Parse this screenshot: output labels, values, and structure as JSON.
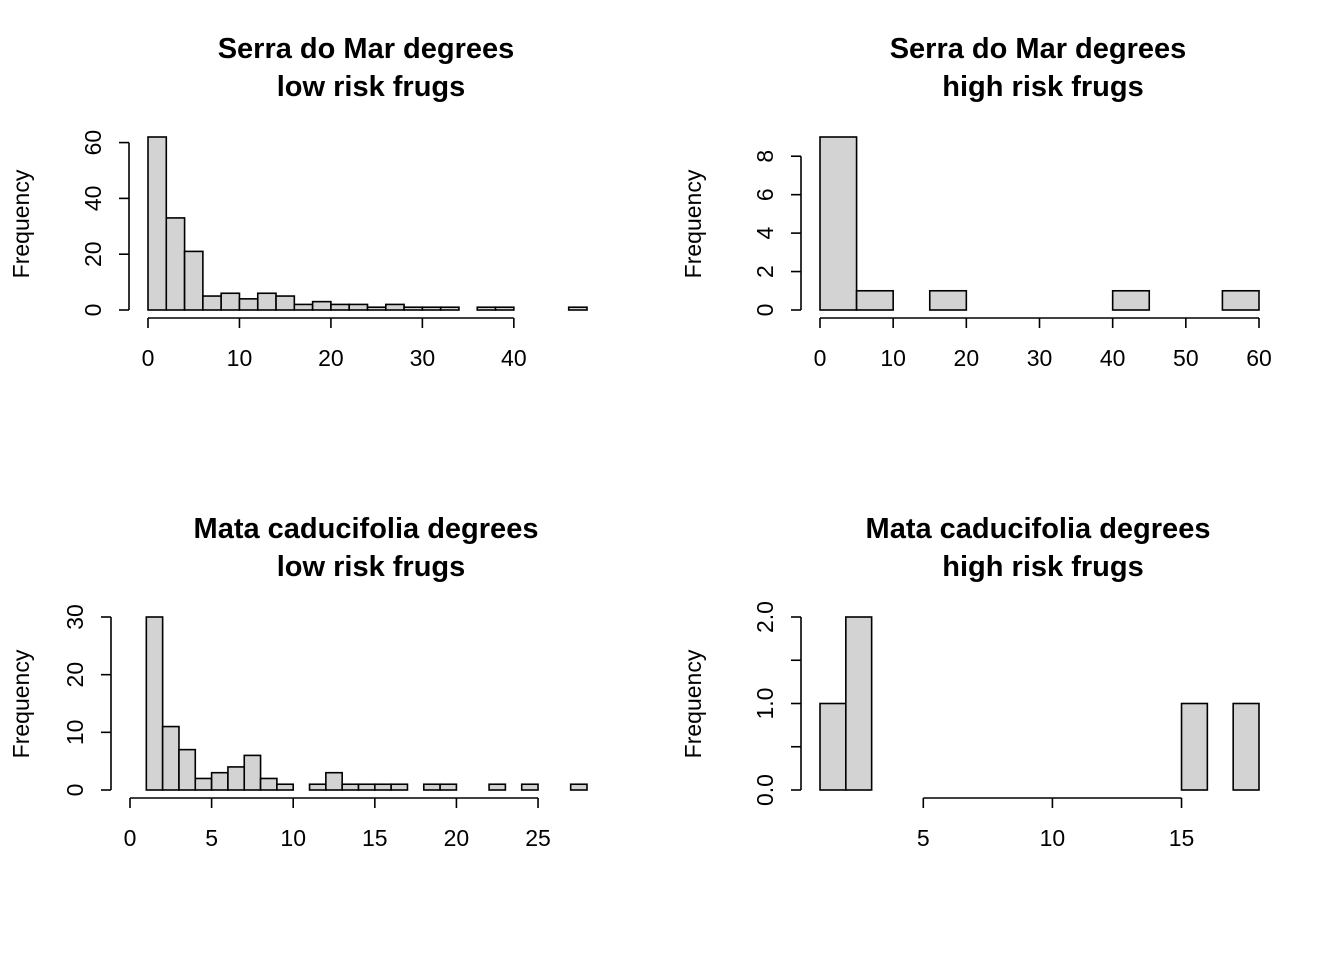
{
  "figure": {
    "background": "#ffffff",
    "bar_fill": "#d3d3d3",
    "bar_stroke": "#000000"
  },
  "chart_data": [
    {
      "type": "bar",
      "title": [
        "Serra do Mar degrees",
        "low risk frugs"
      ],
      "xlabel": "",
      "ylabel": "Frequency",
      "bin_edges": [
        0,
        2,
        4,
        6,
        8,
        10,
        12,
        14,
        16,
        18,
        20,
        22,
        24,
        26,
        28,
        30,
        32,
        34,
        36,
        38,
        40,
        42,
        44,
        46,
        48
      ],
      "values": [
        62,
        33,
        21,
        5,
        6,
        4,
        6,
        5,
        2,
        3,
        2,
        2,
        1,
        2,
        1,
        1,
        1,
        0,
        1,
        1,
        0,
        0,
        0,
        1
      ],
      "xticks": [
        0,
        10,
        20,
        30,
        40
      ],
      "xtick_labels": [
        "0",
        "10",
        "20",
        "30",
        "40"
      ],
      "xlim": [
        0,
        48
      ],
      "yticks": [
        0,
        20,
        40,
        60
      ],
      "ytick_labels": [
        "0",
        "20",
        "40",
        "60"
      ],
      "ylim": [
        0,
        62
      ]
    },
    {
      "type": "bar",
      "title": [
        "Serra do Mar degrees",
        "high risk frugs"
      ],
      "xlabel": "",
      "ylabel": "Frequency",
      "bin_edges": [
        0,
        5,
        10,
        15,
        20,
        25,
        30,
        35,
        40,
        45,
        50,
        55,
        60
      ],
      "values": [
        9,
        1,
        0,
        1,
        0,
        0,
        0,
        0,
        1,
        0,
        0,
        1
      ],
      "xticks": [
        0,
        10,
        20,
        30,
        40,
        50,
        60
      ],
      "xtick_labels": [
        "0",
        "10",
        "20",
        "30",
        "40",
        "50",
        "60"
      ],
      "xlim": [
        0,
        60
      ],
      "yticks": [
        0,
        2,
        4,
        6,
        8
      ],
      "ytick_labels": [
        "0",
        "2",
        "4",
        "6",
        "8"
      ],
      "ylim": [
        0,
        9
      ]
    },
    {
      "type": "bar",
      "title": [
        "Mata caducifolia degrees",
        "low risk frugs"
      ],
      "xlabel": "",
      "ylabel": "Frequency",
      "bin_edges": [
        1,
        2,
        3,
        4,
        5,
        6,
        7,
        8,
        9,
        10,
        11,
        12,
        13,
        14,
        15,
        16,
        17,
        18,
        19,
        20,
        21,
        22,
        23,
        24,
        25,
        26,
        27,
        28
      ],
      "values": [
        30,
        11,
        7,
        2,
        3,
        4,
        6,
        2,
        1,
        0,
        1,
        3,
        1,
        1,
        1,
        1,
        0,
        1,
        1,
        0,
        0,
        1,
        0,
        1,
        0,
        0,
        1
      ],
      "xticks": [
        0,
        5,
        10,
        15,
        20,
        25
      ],
      "xtick_labels": [
        "0",
        "5",
        "10",
        "15",
        "20",
        "25"
      ],
      "xlim": [
        0,
        28
      ],
      "yticks": [
        0,
        10,
        20,
        30
      ],
      "ytick_labels": [
        "0",
        "10",
        "20",
        "30"
      ],
      "ylim": [
        0,
        30
      ]
    },
    {
      "type": "bar",
      "title": [
        "Mata caducifolia degrees",
        "high risk frugs"
      ],
      "xlabel": "",
      "ylabel": "Frequency",
      "bin_edges": [
        1,
        2,
        3,
        4,
        5,
        6,
        7,
        8,
        9,
        10,
        11,
        12,
        13,
        14,
        15,
        16,
        17,
        18
      ],
      "values": [
        1,
        2,
        0,
        0,
        0,
        0,
        0,
        0,
        0,
        0,
        0,
        0,
        0,
        0,
        1,
        0,
        1
      ],
      "xticks": [
        5,
        10,
        15
      ],
      "xtick_labels": [
        "5",
        "10",
        "15"
      ],
      "xlim": [
        1,
        18
      ],
      "yticks": [
        0,
        0.5,
        1,
        1.5,
        2
      ],
      "ytick_labels": [
        "0.0",
        "",
        "1.0",
        "",
        "2.0"
      ],
      "ylim": [
        0,
        2
      ]
    }
  ]
}
